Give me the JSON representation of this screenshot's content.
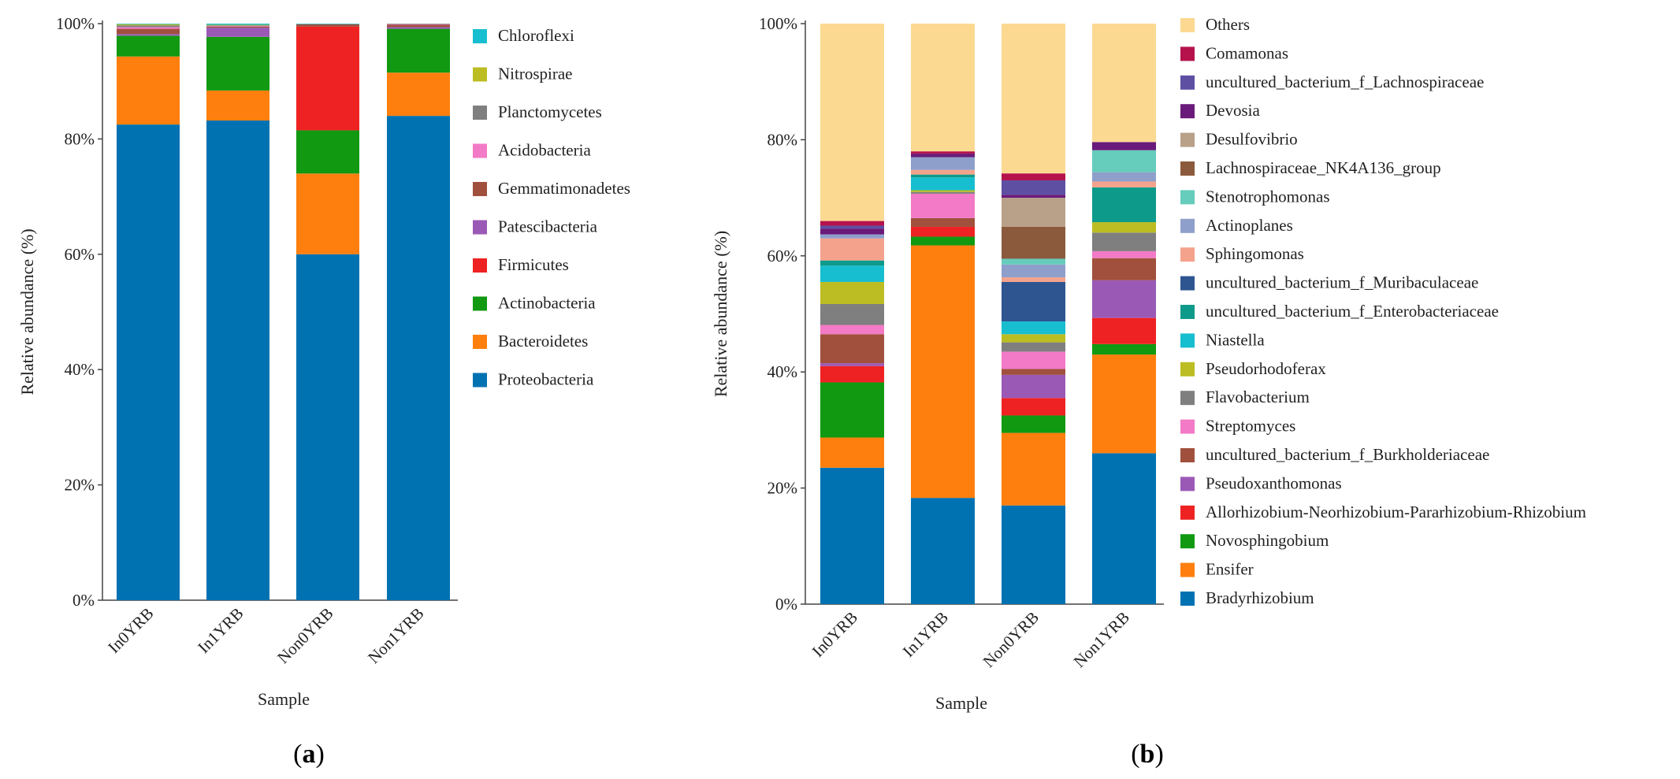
{
  "chart_data": [
    {
      "type": "bar",
      "stacked": true,
      "panel": "a",
      "xlabel": "Sample",
      "ylabel": "Relative abundance (%)",
      "ylim": [
        0,
        100
      ],
      "yticks": [
        "0%",
        "20%",
        "40%",
        "60%",
        "80%",
        "100%"
      ],
      "categories": [
        "In0YRB",
        "In1YRB",
        "Non0YRB",
        "Non1YRB"
      ],
      "legend_position": "right",
      "series": [
        {
          "name": "Proteobacteria",
          "color": "#0072B2",
          "values": [
            82.5,
            83.2,
            60.0,
            84.0
          ]
        },
        {
          "name": "Bacteroidetes",
          "color": "#FF7F0E",
          "values": [
            11.8,
            5.2,
            14.0,
            7.5
          ]
        },
        {
          "name": "Actinobacteria",
          "color": "#119911",
          "values": [
            3.6,
            9.3,
            7.5,
            7.6
          ]
        },
        {
          "name": "Firmicutes",
          "color": "#EE2222",
          "values": [
            0.0,
            0.0,
            18.0,
            0.0
          ]
        },
        {
          "name": "Patescibacteria",
          "color": "#9B59B6",
          "values": [
            0.3,
            1.6,
            0.0,
            0.3
          ]
        },
        {
          "name": "Gemmatimonadetes",
          "color": "#A0503C",
          "values": [
            0.9,
            0.2,
            0.4,
            0.4
          ]
        },
        {
          "name": "Acidobacteria",
          "color": "#F27AC6",
          "values": [
            0.3,
            0.1,
            0.0,
            0.1
          ]
        },
        {
          "name": "Planctomycetes",
          "color": "#7F7F7F",
          "values": [
            0.3,
            0.1,
            0.0,
            0.1
          ]
        },
        {
          "name": "Nitrospirae",
          "color": "#BCBD22",
          "values": [
            0.2,
            0.1,
            0.0,
            0.0
          ]
        },
        {
          "name": "Chloroflexi",
          "color": "#17BECF",
          "values": [
            0.1,
            0.2,
            0.1,
            0.0
          ]
        }
      ]
    },
    {
      "type": "bar",
      "stacked": true,
      "panel": "b",
      "xlabel": "Sample",
      "ylabel": "Relative abundance (%)",
      "ylim": [
        0,
        100
      ],
      "yticks": [
        "0%",
        "20%",
        "40%",
        "60%",
        "80%",
        "100%"
      ],
      "categories": [
        "In0YRB",
        "In1YRB",
        "Non0YRB",
        "Non1YRB"
      ],
      "legend_position": "right",
      "series": [
        {
          "name": "Bradyrhizobium",
          "color": "#0072B2",
          "values": [
            23.5,
            18.3,
            17.0,
            26.0
          ]
        },
        {
          "name": "Ensifer",
          "color": "#FF7F0E",
          "values": [
            5.2,
            43.5,
            12.5,
            17.0
          ]
        },
        {
          "name": "Novosphingobium",
          "color": "#119911",
          "values": [
            9.5,
            1.5,
            3.0,
            1.8
          ]
        },
        {
          "name": "Allorhizobium-Neorhizobium-Pararhizobium-Rhizobium",
          "color": "#EE2222",
          "values": [
            2.8,
            1.7,
            3.0,
            4.5
          ]
        },
        {
          "name": "Pseudoxanthomonas",
          "color": "#9B59B6",
          "values": [
            0.5,
            0.0,
            4.0,
            6.5
          ]
        },
        {
          "name": "uncultured_bacterium_f_Burkholderiaceae",
          "color": "#A0503C",
          "values": [
            5.0,
            1.5,
            1.0,
            3.8
          ]
        },
        {
          "name": "Streptomyces",
          "color": "#F27AC6",
          "values": [
            1.6,
            4.2,
            3.0,
            1.2
          ]
        },
        {
          "name": "Flavobacterium",
          "color": "#7F7F7F",
          "values": [
            3.6,
            0.3,
            1.6,
            3.2
          ]
        },
        {
          "name": "Pseudorhodoferax",
          "color": "#BCBD22",
          "values": [
            3.8,
            0.3,
            1.4,
            1.8
          ]
        },
        {
          "name": "Niastella",
          "color": "#17BECF",
          "values": [
            2.8,
            2.2,
            2.2,
            0.0
          ]
        },
        {
          "name": "uncultured_bacterium_f_Enterobacteriaceae",
          "color": "#0E9A8A",
          "values": [
            0.9,
            0.5,
            0.0,
            6.0
          ]
        },
        {
          "name": "uncultured_bacterium_f_Muribaculaceae",
          "color": "#2E5590",
          "values": [
            0.0,
            0.0,
            6.8,
            0.0
          ]
        },
        {
          "name": "Sphingomonas",
          "color": "#F4A28C",
          "values": [
            3.8,
            0.8,
            0.8,
            1.0
          ]
        },
        {
          "name": "Actinoplanes",
          "color": "#8F9FCB",
          "values": [
            0.7,
            2.2,
            2.2,
            1.6
          ]
        },
        {
          "name": "Stenotrophomonas",
          "color": "#66CCBB",
          "values": [
            0.0,
            0.0,
            1.0,
            3.8
          ]
        },
        {
          "name": "Lachnospiraceae_NK4A136_group",
          "color": "#8B5A3C",
          "values": [
            0.0,
            0.0,
            5.5,
            0.0
          ]
        },
        {
          "name": "Desulfovibrio",
          "color": "#B9A088",
          "values": [
            0.0,
            0.0,
            5.0,
            0.0
          ]
        },
        {
          "name": "Devosia",
          "color": "#6A1A7A",
          "values": [
            1.0,
            0.6,
            0.5,
            1.4
          ]
        },
        {
          "name": "uncultured_bacterium_f_Lachnospiraceae",
          "color": "#5E4FA2",
          "values": [
            0.5,
            0.0,
            2.5,
            0.0
          ]
        },
        {
          "name": "Comamonas",
          "color": "#B5124C",
          "values": [
            0.8,
            0.4,
            1.2,
            0.0
          ]
        },
        {
          "name": "Others",
          "color": "#FCD991",
          "values": [
            34.0,
            22.0,
            25.8,
            20.4
          ]
        }
      ]
    }
  ],
  "panel_labels": {
    "a": "(a)",
    "b": "(b)"
  }
}
